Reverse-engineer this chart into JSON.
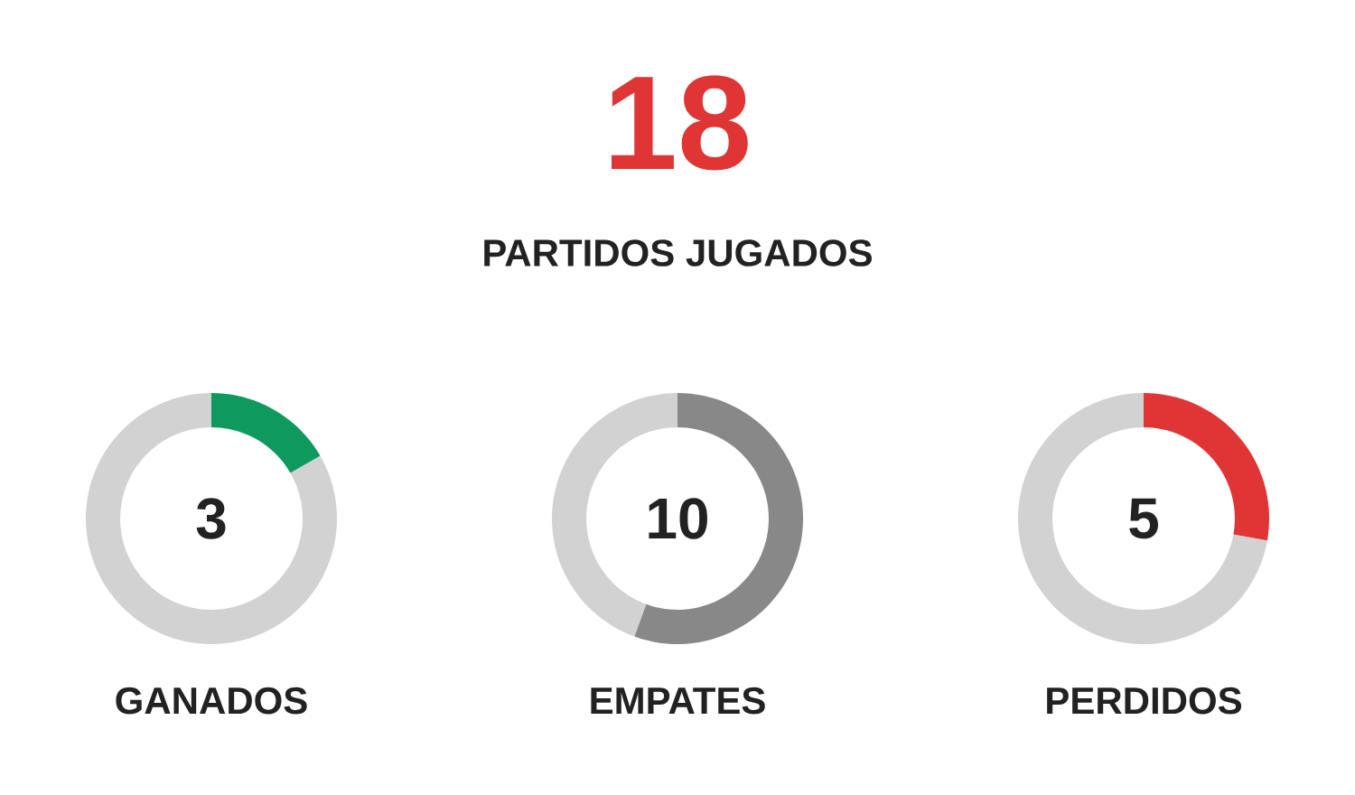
{
  "chart_data": [
    {
      "type": "other",
      "title": "18",
      "subtitle": "PARTIDOS JUGADOS",
      "color": "#e03535"
    },
    {
      "type": "donut",
      "title": "GANADOS",
      "categories": [
        null,
        null
      ],
      "values": [
        16.67,
        83.33
      ],
      "colors": [
        "#0e9a5e",
        "#d2d2d2"
      ],
      "annotations": [
        "3"
      ]
    },
    {
      "type": "donut",
      "title": "EMPATES",
      "categories": [
        null,
        null
      ],
      "values": [
        55.56,
        44.44
      ],
      "colors": [
        "#888888",
        "#d2d2d2"
      ],
      "annotations": [
        "10"
      ]
    },
    {
      "type": "donut",
      "title": "PERDIDOS",
      "categories": [
        null,
        null
      ],
      "values": [
        27.78,
        72.22
      ],
      "colors": [
        "#e03535",
        "#d2d2d2"
      ],
      "annotations": [
        "5"
      ]
    }
  ]
}
